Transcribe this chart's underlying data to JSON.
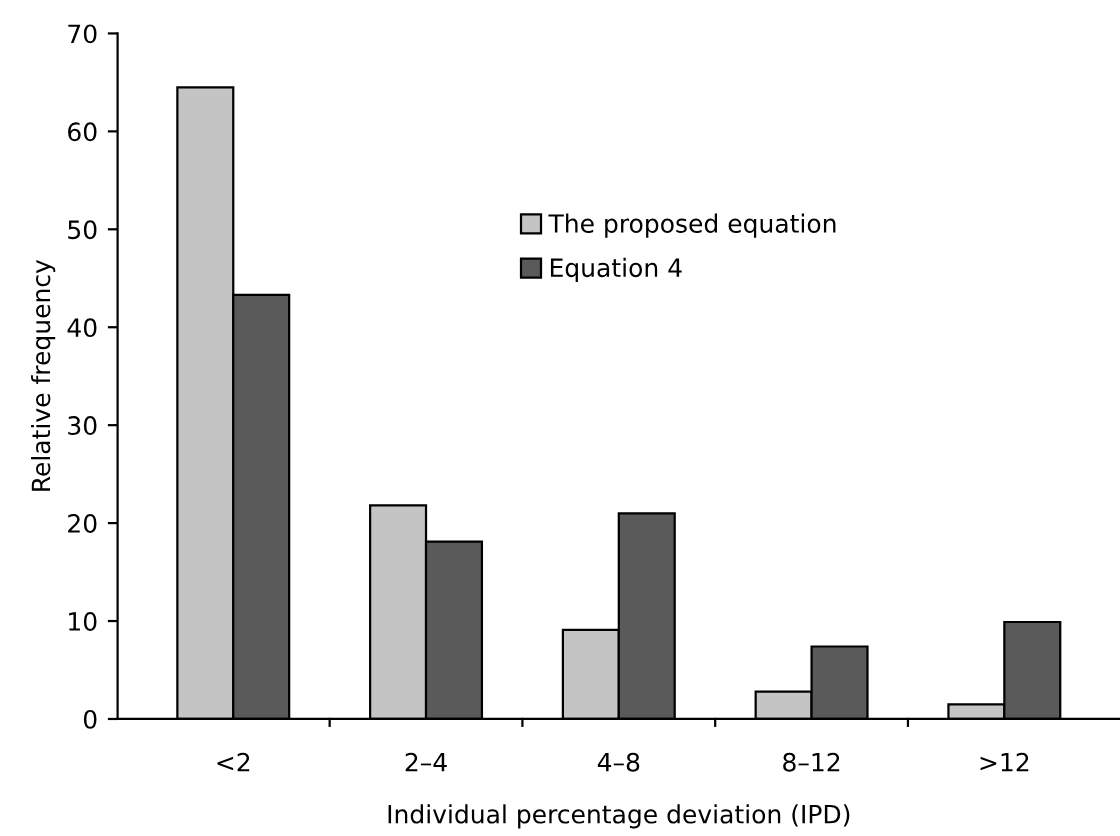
{
  "chart_data": {
    "type": "bar",
    "xlabel": "Individual percentage deviation (IPD)",
    "ylabel": "Relative frequency",
    "categories": [
      "<2",
      "2–4",
      "4–8",
      "8–12",
      ">12"
    ],
    "series": [
      {
        "name": "The proposed equation",
        "color": "#c4c4c4",
        "values": [
          64.5,
          21.8,
          9.1,
          2.8,
          1.5
        ]
      },
      {
        "name": "Equation 4",
        "color": "#5a5a5a",
        "values": [
          43.3,
          18.1,
          21.0,
          7.4,
          9.9
        ]
      }
    ],
    "ylim": [
      0,
      70
    ],
    "yticks": [
      0,
      10,
      20,
      30,
      40,
      50,
      60,
      70
    ],
    "grid": false,
    "legend": "top right"
  }
}
